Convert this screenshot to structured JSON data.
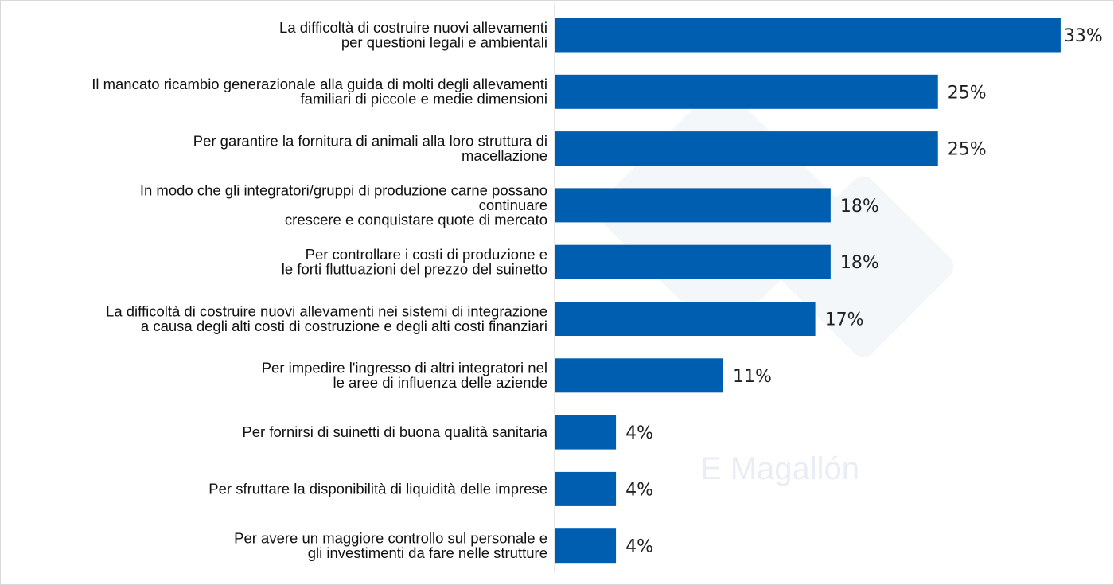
{
  "chart_data": {
    "type": "bar",
    "orientation": "horizontal",
    "categories": [
      [
        "La difficoltà di costruire nuovi allevamenti",
        "per questioni legali e ambientali"
      ],
      [
        "Il mancato ricambio generazionale alla guida di molti degli allevamenti",
        "familiari di piccole e medie dimensioni"
      ],
      [
        "Per garantire la fornitura di animali alla loro struttura di",
        "macellazione"
      ],
      [
        "In modo che gli integratori/gruppi di produzione carne possano",
        "continuare",
        "crescere e conquistare quote di mercato"
      ],
      [
        "Per controllare i costi di produzione e",
        "le forti fluttuazioni del prezzo del suinetto"
      ],
      [
        "La difficoltà di costruire nuovi allevamenti nei sistemi di integrazione",
        "a causa degli alti costi di costruzione e degli alti costi finanziari"
      ],
      [
        "Per impedire l'ingresso di altri integratori nel",
        "le aree di influenza delle aziende"
      ],
      [
        "Per fornirsi di suinetti di buona qualità sanitaria"
      ],
      [
        "Per sfruttare la disponibilità di liquidità delle imprese"
      ],
      [
        "Per avere un maggiore controllo sul personale e",
        "gli investimenti da fare nelle strutture"
      ]
    ],
    "values": [
      33,
      25,
      25,
      18,
      18,
      17,
      11,
      4,
      4,
      4
    ],
    "value_labels": [
      "33%",
      "25%",
      "25%",
      "18%",
      "18%",
      "17%",
      "11%",
      "4%",
      "4%",
      "4%"
    ],
    "unit": "%",
    "xlim": [
      0,
      33
    ],
    "grid": false,
    "legend": "none",
    "bar_color": "#005EB0"
  },
  "watermark": "E Magallón"
}
